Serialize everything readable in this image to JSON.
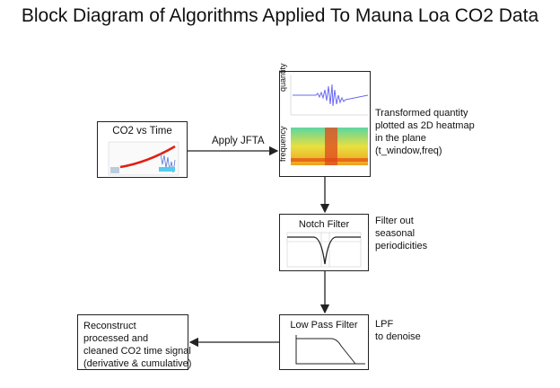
{
  "title": "Block Diagram of Algorithms Applied To Mauna Loa CO2 Data",
  "blocks": {
    "co2": {
      "title": "CO2 vs Time"
    },
    "jfta": {
      "ylabel_top": "quantity",
      "ylabel_bottom": "frequency"
    },
    "notch": {
      "title": "Notch Filter"
    },
    "lpf": {
      "title": "Low Pass Filter"
    },
    "reconstruct": {
      "lines": [
        "Reconstruct",
        "processed and",
        "cleaned CO2 time signal",
        "(derivative & cumulative)"
      ]
    }
  },
  "edges": {
    "apply_jfta": "Apply JFTA"
  },
  "notes": {
    "jfta": [
      "Transformed quantity",
      "plotted as 2D heatmap",
      "in the plane",
      "(t_window,freq)"
    ],
    "notch": [
      "Filter out",
      "seasonal",
      "periodicities"
    ],
    "lpf": [
      "LPF",
      "to denoise"
    ]
  },
  "colors": {
    "line": "#222222",
    "signal": "#6a6af0",
    "heat_low": "#5cd6a0",
    "heat_high": "#e03010",
    "trend": "#e02010"
  }
}
